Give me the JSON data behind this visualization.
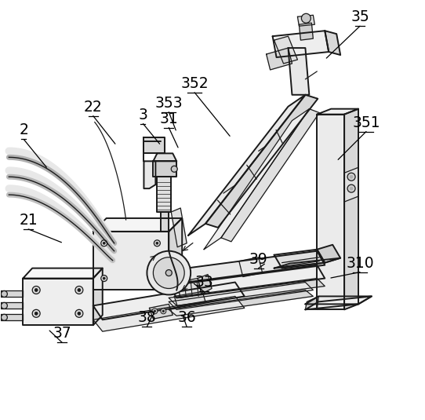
{
  "background_color": "#ffffff",
  "line_color": "#1a1a1a",
  "figsize": [
    5.42,
    5.35
  ],
  "dpi": 100,
  "labels": [
    [
      "2",
      29,
      175,
      60,
      215
    ],
    [
      "22",
      118,
      145,
      148,
      185
    ],
    [
      "21",
      35,
      290,
      80,
      310
    ],
    [
      "3",
      182,
      155,
      205,
      185
    ],
    [
      "31",
      215,
      160,
      228,
      190
    ],
    [
      "353",
      215,
      140,
      225,
      168
    ],
    [
      "352",
      248,
      115,
      295,
      175
    ],
    [
      "35",
      460,
      30,
      415,
      75
    ],
    [
      "351",
      468,
      165,
      430,
      205
    ],
    [
      "310",
      460,
      345,
      420,
      355
    ],
    [
      "39",
      330,
      340,
      340,
      335
    ],
    [
      "33",
      260,
      370,
      245,
      360
    ],
    [
      "36",
      238,
      415,
      232,
      400
    ],
    [
      "38",
      187,
      415,
      195,
      400
    ],
    [
      "37",
      78,
      435,
      60,
      420
    ]
  ]
}
